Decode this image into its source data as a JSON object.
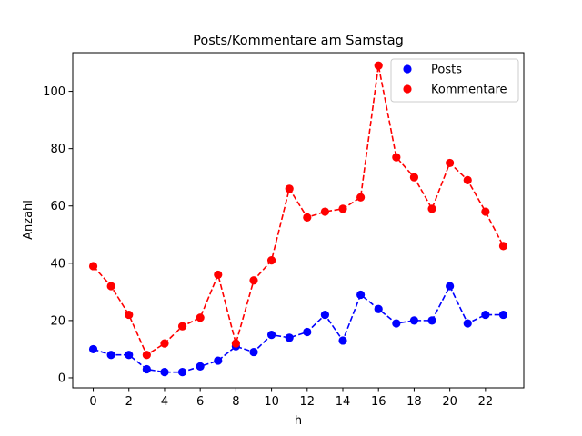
{
  "chart_data": {
    "type": "line",
    "title": "Posts/Kommentare am Samstag",
    "xlabel": "h",
    "ylabel": "Anzahl",
    "xlim": [
      -1.15,
      24.15
    ],
    "ylim": [
      -3.5,
      113.5
    ],
    "xticks": [
      0,
      2,
      4,
      6,
      8,
      10,
      12,
      14,
      16,
      18,
      20,
      22
    ],
    "yticks": [
      0,
      20,
      40,
      60,
      80,
      100
    ],
    "grid": false,
    "legend_position": "top-right",
    "x": [
      0,
      1,
      2,
      3,
      4,
      5,
      6,
      7,
      8,
      9,
      10,
      11,
      12,
      13,
      14,
      15,
      16,
      17,
      18,
      19,
      20,
      21,
      22,
      23
    ],
    "series": [
      {
        "name": "Posts",
        "color": "#0000ff",
        "values": [
          10,
          8,
          8,
          3,
          2,
          2,
          4,
          6,
          11,
          9,
          15,
          14,
          16,
          22,
          13,
          29,
          24,
          19,
          20,
          20,
          32,
          19,
          22,
          22
        ]
      },
      {
        "name": "Kommentare",
        "color": "#ff0000",
        "values": [
          39,
          32,
          22,
          8,
          12,
          18,
          21,
          36,
          12,
          34,
          41,
          66,
          56,
          58,
          59,
          63,
          109,
          77,
          70,
          59,
          75,
          69,
          58,
          46
        ]
      }
    ]
  }
}
